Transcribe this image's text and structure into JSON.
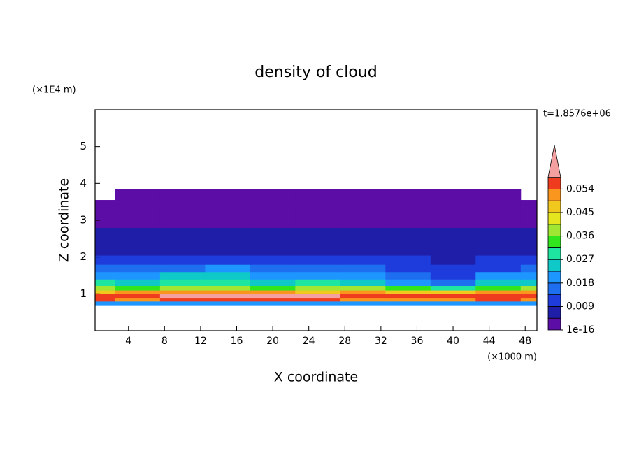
{
  "chart_data": {
    "type": "contour",
    "title": "density of cloud",
    "x_label": "X coordinate",
    "y_label": "Z coordinate",
    "x_unit": "(×1000 m)",
    "y_unit": "(×1E4 m)",
    "annotation": "t=1.8576e+06",
    "xlim": [
      0.3,
      49.3
    ],
    "ylim": [
      0,
      6
    ],
    "xticks": [
      4,
      8,
      12,
      16,
      20,
      24,
      28,
      32,
      36,
      40,
      44,
      48
    ],
    "yticks": [
      1,
      2,
      3,
      4,
      5
    ],
    "x": [
      0,
      5,
      10,
      15,
      20,
      25,
      30,
      35,
      40,
      45,
      50
    ],
    "y": [
      0.75,
      0.85,
      0.95,
      1.05,
      1.15,
      1.3,
      1.5,
      1.7,
      1.9,
      2.2,
      2.6,
      3.0,
      3.4,
      3.7
    ],
    "z": [
      [
        0.018,
        0.02,
        0.018,
        0.02,
        0.022,
        0.02,
        0.02,
        0.018,
        0.02,
        0.02,
        0.018
      ],
      [
        0.055,
        0.05,
        0.054,
        0.056,
        0.055,
        0.054,
        0.052,
        0.05,
        0.052,
        0.054,
        0.05
      ],
      [
        0.058,
        0.056,
        0.06,
        0.062,
        0.061,
        0.059,
        0.057,
        0.055,
        0.057,
        0.058,
        0.056
      ],
      [
        0.048,
        0.05,
        0.052,
        0.053,
        0.05,
        0.048,
        0.05,
        0.047,
        0.046,
        0.05,
        0.052
      ],
      [
        0.036,
        0.034,
        0.04,
        0.038,
        0.035,
        0.036,
        0.037,
        0.033,
        0.03,
        0.034,
        0.04
      ],
      [
        0.028,
        0.026,
        0.03,
        0.027,
        0.025,
        0.028,
        0.026,
        0.02,
        0.016,
        0.024,
        0.026
      ],
      [
        0.022,
        0.02,
        0.024,
        0.026,
        0.02,
        0.022,
        0.021,
        0.014,
        0.012,
        0.018,
        0.02
      ],
      [
        0.016,
        0.014,
        0.015,
        0.018,
        0.016,
        0.017,
        0.015,
        0.012,
        0.011,
        0.013,
        0.014
      ],
      [
        0.011,
        0.01,
        0.009,
        0.01,
        0.011,
        0.01,
        0.01,
        0.009,
        0.008,
        0.01,
        0.01
      ],
      [
        0.007,
        0.008,
        0.006,
        0.007,
        0.007,
        0.006,
        0.007,
        0.007,
        0.006,
        0.007,
        0.007
      ],
      [
        0.006,
        0.005,
        0.005,
        0.005,
        0.006,
        0.005,
        0.005,
        0.005,
        0.006,
        0.005,
        0.005
      ],
      [
        0.004,
        0.004,
        0.003,
        0.004,
        0.004,
        0.004,
        0.004,
        0.003,
        0.004,
        0.004,
        0.004
      ],
      [
        0.002,
        0.002,
        0.002,
        0.002,
        0.002,
        0.002,
        0.002,
        0.002,
        0.002,
        0.002,
        0.002
      ],
      [
        null,
        0.001,
        0.001,
        0.001,
        0.001,
        0.001,
        0.001,
        0.001,
        0.001,
        0.001,
        null
      ]
    ],
    "levels": [
      1e-16,
      0.0045,
      0.009,
      0.0135,
      0.018,
      0.0225,
      0.027,
      0.0315,
      0.036,
      0.0405,
      0.045,
      0.0495,
      0.054,
      0.0585
    ],
    "colors": [
      "#5b0da6",
      "#1e1ea8",
      "#1e3cdc",
      "#1e6ef0",
      "#1e96ff",
      "#0fc8c8",
      "#1ee6a0",
      "#32e61e",
      "#a0e632",
      "#e6e61e",
      "#f0c81e",
      "#fa961e",
      "#f03c1e"
    ],
    "over_color": "#f5a0a0",
    "colorbar_ticks": [
      1e-16,
      0.009,
      0.018,
      0.027,
      0.036,
      0.045,
      0.054
    ]
  }
}
